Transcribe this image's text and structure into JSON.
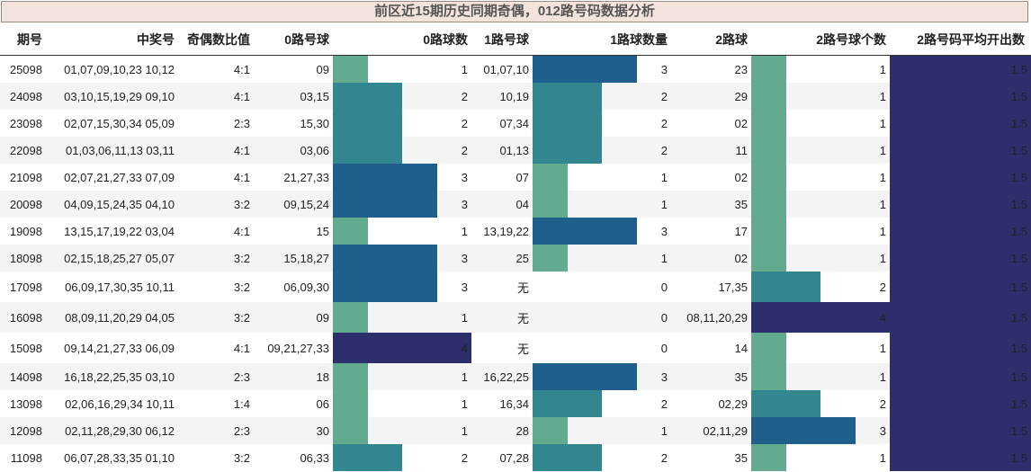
{
  "title": "前区近15期历史同期奇偶，012路号码数据分析",
  "headers": [
    "期号",
    "中奖号",
    "奇偶数比值",
    "0路号球",
    "0路球数",
    "1路号球",
    "1路球数量",
    "2路球",
    "2路号球个数",
    "2路号码平均开出数"
  ],
  "colors": {
    "c1": "#63ab8e",
    "c2": "#318690",
    "c3": "#1f5f8b",
    "c4": "#2d2f6d"
  },
  "rows": [
    {
      "issue": "25098",
      "numbers": "01,07,09,10,23 10,12",
      "ratio": "4:1",
      "r0": "09",
      "n0": 1,
      "r1": "01,07,10",
      "n1": 3,
      "r2": "23",
      "n2": 1,
      "avg": "1.5"
    },
    {
      "issue": "24098",
      "numbers": "03,10,15,19,29 09,10",
      "ratio": "4:1",
      "r0": "03,15",
      "n0": 2,
      "r1": "10,19",
      "n1": 2,
      "r2": "29",
      "n2": 1,
      "avg": "1.5"
    },
    {
      "issue": "23098",
      "numbers": "02,07,15,30,34 05,09",
      "ratio": "2:3",
      "r0": "15,30",
      "n0": 2,
      "r1": "07,34",
      "n1": 2,
      "r2": "02",
      "n2": 1,
      "avg": "1.5"
    },
    {
      "issue": "22098",
      "numbers": "01,03,06,11,13 03,11",
      "ratio": "4:1",
      "r0": "03,06",
      "n0": 2,
      "r1": "01,13",
      "n1": 2,
      "r2": "11",
      "n2": 1,
      "avg": "1.5"
    },
    {
      "issue": "21098",
      "numbers": "02,07,21,27,33 07,09",
      "ratio": "4:1",
      "r0": "21,27,33",
      "n0": 3,
      "r1": "07",
      "n1": 1,
      "r2": "02",
      "n2": 1,
      "avg": "1.5"
    },
    {
      "issue": "20098",
      "numbers": "04,09,15,24,35 04,10",
      "ratio": "3:2",
      "r0": "09,15,24",
      "n0": 3,
      "r1": "04",
      "n1": 1,
      "r2": "35",
      "n2": 1,
      "avg": "1.5"
    },
    {
      "issue": "19098",
      "numbers": "13,15,17,19,22 03,04",
      "ratio": "4:1",
      "r0": "15",
      "n0": 1,
      "r1": "13,19,22",
      "n1": 3,
      "r2": "17",
      "n2": 1,
      "avg": "1.5"
    },
    {
      "issue": "18098",
      "numbers": "02,15,18,25,27 05,07",
      "ratio": "3:2",
      "r0": "15,18,27",
      "n0": 3,
      "r1": "25",
      "n1": 1,
      "r2": "02",
      "n2": 1,
      "avg": "1.5"
    },
    {
      "issue": "17098",
      "numbers": "06,09,17,30,35 10,11",
      "ratio": "3:2",
      "r0": "06,09,30",
      "n0": 3,
      "r1": "无",
      "n1": 0,
      "r2": "17,35",
      "n2": 2,
      "avg": "1.5"
    },
    {
      "issue": "16098",
      "numbers": "08,09,11,20,29 04,05",
      "ratio": "3:2",
      "r0": "09",
      "n0": 1,
      "r1": "无",
      "n1": 0,
      "r2": "08,11,20,29",
      "n2": 4,
      "avg": "1.5"
    },
    {
      "issue": "15098",
      "numbers": "09,14,21,27,33 06,09",
      "ratio": "4:1",
      "r0": "09,21,27,33",
      "n0": 4,
      "r1": "无",
      "n1": 0,
      "r2": "14",
      "n2": 1,
      "avg": "1.5"
    },
    {
      "issue": "14098",
      "numbers": "16,18,22,25,35 03,10",
      "ratio": "2:3",
      "r0": "18",
      "n0": 1,
      "r1": "16,22,25",
      "n1": 3,
      "r2": "35",
      "n2": 1,
      "avg": "1.5"
    },
    {
      "issue": "13098",
      "numbers": "02,06,16,29,34 10,11",
      "ratio": "1:4",
      "r0": "06",
      "n0": 1,
      "r1": "16,34",
      "n1": 2,
      "r2": "02,29",
      "n2": 2,
      "avg": "1.5"
    },
    {
      "issue": "12098",
      "numbers": "02,11,28,29,30 06,12",
      "ratio": "2:3",
      "r0": "30",
      "n0": 1,
      "r1": "28",
      "n1": 1,
      "r2": "02,11,29",
      "n2": 3,
      "avg": "1.5"
    },
    {
      "issue": "11098",
      "numbers": "06,07,28,33,35 01,10",
      "ratio": "3:2",
      "r0": "06,33",
      "n0": 2,
      "r1": "07,28",
      "n1": 2,
      "r2": "35",
      "n2": 1,
      "avg": "1.5"
    }
  ]
}
